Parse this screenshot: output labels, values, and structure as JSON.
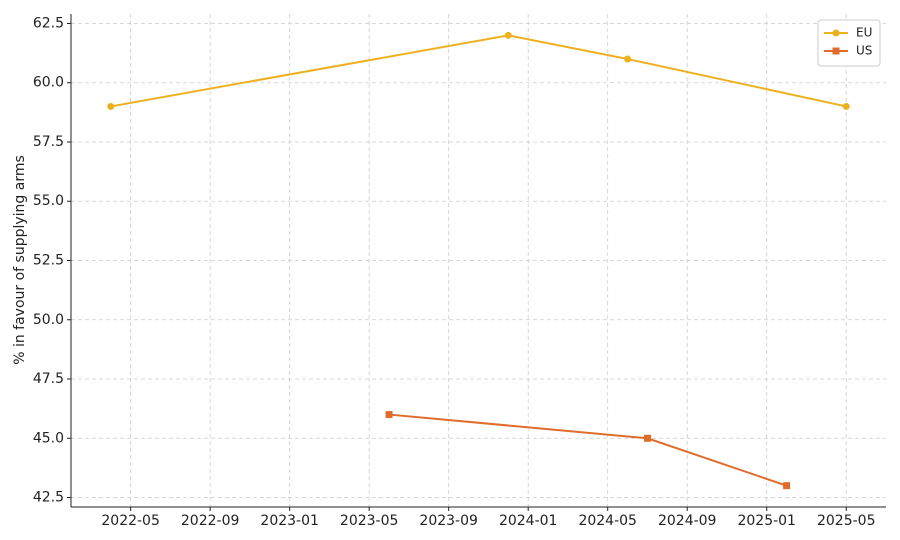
{
  "chart_data": {
    "type": "line",
    "ylabel": "% in favour of supplying arms",
    "series": [
      {
        "name": "EU",
        "color": "#edb120",
        "marker": "circle",
        "x": [
          "2022-04",
          "2023-12",
          "2024-06",
          "2025-05"
        ],
        "values": [
          59,
          62,
          61,
          59
        ]
      },
      {
        "name": "US",
        "color": "#e06c2c",
        "marker": "square",
        "x": [
          "2023-06",
          "2024-07",
          "2025-02"
        ],
        "values": [
          46,
          45,
          43
        ]
      }
    ],
    "xlim": [
      "2022-02",
      "2025-07"
    ],
    "xticks": [
      "2022-05",
      "2022-09",
      "2023-01",
      "2023-05",
      "2023-09",
      "2024-01",
      "2024-05",
      "2024-09",
      "2025-01",
      "2025-05"
    ],
    "ylim": [
      42.1,
      62.9
    ],
    "yticks": [
      42.5,
      {
        "value": 45,
        "label": "45.0"
      },
      47.5,
      {
        "value": 50,
        "label": "50.0"
      },
      52.5,
      {
        "value": 55,
        "label": "55.0"
      },
      57.5,
      {
        "value": 60,
        "label": "60.0"
      },
      62.5
    ],
    "grid": true,
    "legend": "upper-right"
  }
}
